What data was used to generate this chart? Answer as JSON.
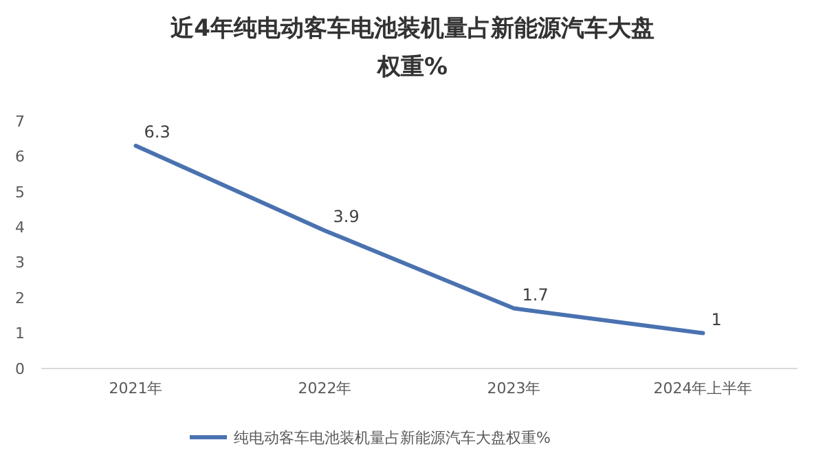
{
  "chart_data": {
    "type": "line",
    "title": "近4年纯电动客车电池装机量占新能源汽车大盘权重%",
    "categories": [
      "2021年",
      "2022年",
      "2023年",
      "2024年上半年"
    ],
    "series": [
      {
        "name": "纯电动客车电池装机量占新能源汽车大盘权重%",
        "color": "#4a72b0",
        "values": [
          6.3,
          3.9,
          1.7,
          1
        ]
      }
    ],
    "ylim": [
      0,
      7
    ],
    "yticks": [
      0,
      1,
      2,
      3,
      4,
      5,
      6,
      7
    ],
    "grid": false,
    "legend": "bottom",
    "data_labels": true,
    "marker": "none",
    "line_style": "solid"
  }
}
